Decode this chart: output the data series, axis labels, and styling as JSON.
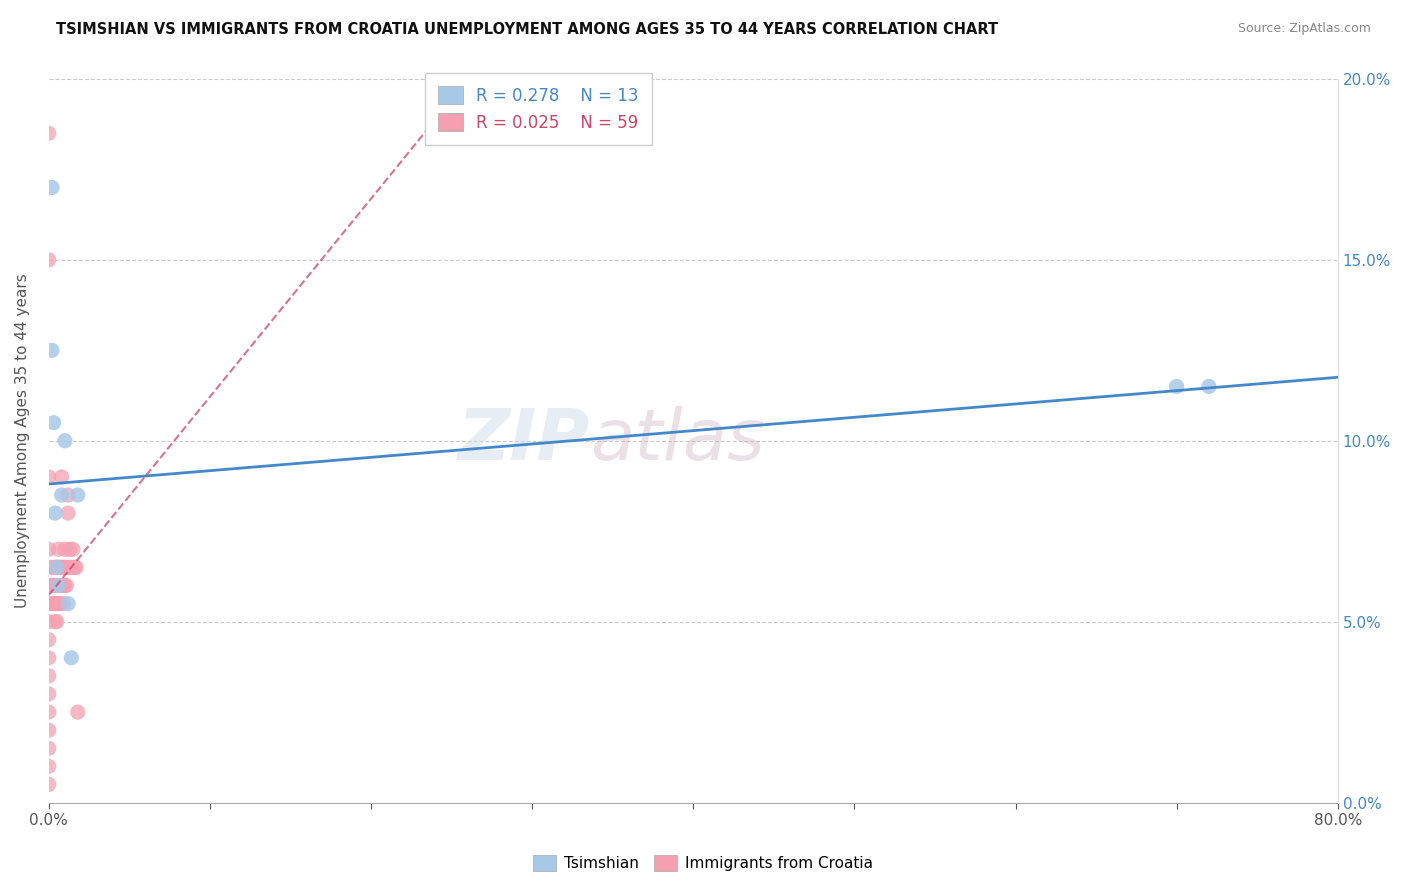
{
  "title": "TSIMSHIAN VS IMMIGRANTS FROM CROATIA UNEMPLOYMENT AMONG AGES 35 TO 44 YEARS CORRELATION CHART",
  "source": "Source: ZipAtlas.com",
  "ylabel": "Unemployment Among Ages 35 to 44 years",
  "legend_label_1": "Tsimshian",
  "legend_label_2": "Immigrants from Croatia",
  "R1": 0.278,
  "N1": 13,
  "R2": 0.025,
  "N2": 59,
  "color1": "#a8c8e8",
  "color2": "#f4a0b0",
  "trendline1_color": "#4488cc",
  "trendline2_color": "#cc4466",
  "xlim": [
    0,
    0.8
  ],
  "ylim": [
    0,
    0.2
  ],
  "xticks": [
    0.0,
    0.1,
    0.2,
    0.3,
    0.4,
    0.5,
    0.6,
    0.7,
    0.8
  ],
  "yticks": [
    0.0,
    0.05,
    0.1,
    0.15,
    0.2
  ],
  "watermark_text": "ZIP",
  "watermark_text2": "atlas",
  "tsimshian_x": [
    0.002,
    0.002,
    0.003,
    0.004,
    0.005,
    0.006,
    0.008,
    0.01,
    0.012,
    0.014,
    0.018,
    0.7,
    0.72
  ],
  "tsimshian_y": [
    0.17,
    0.125,
    0.105,
    0.08,
    0.065,
    0.06,
    0.085,
    0.1,
    0.055,
    0.04,
    0.085,
    0.115,
    0.115
  ],
  "croatia_x": [
    0.0,
    0.0,
    0.0,
    0.0,
    0.0,
    0.0,
    0.0,
    0.0,
    0.0,
    0.0,
    0.0,
    0.0,
    0.0,
    0.0,
    0.0,
    0.0,
    0.0,
    0.002,
    0.002,
    0.003,
    0.003,
    0.003,
    0.004,
    0.004,
    0.004,
    0.004,
    0.005,
    0.005,
    0.005,
    0.005,
    0.005,
    0.006,
    0.006,
    0.006,
    0.006,
    0.007,
    0.007,
    0.007,
    0.008,
    0.008,
    0.008,
    0.009,
    0.009,
    0.009,
    0.009,
    0.01,
    0.01,
    0.01,
    0.011,
    0.011,
    0.012,
    0.012,
    0.013,
    0.013,
    0.014,
    0.015,
    0.016,
    0.017,
    0.018
  ],
  "croatia_y": [
    0.185,
    0.15,
    0.09,
    0.07,
    0.065,
    0.06,
    0.055,
    0.05,
    0.045,
    0.04,
    0.035,
    0.03,
    0.025,
    0.02,
    0.015,
    0.01,
    0.005,
    0.06,
    0.055,
    0.065,
    0.06,
    0.055,
    0.065,
    0.06,
    0.055,
    0.05,
    0.065,
    0.065,
    0.06,
    0.055,
    0.05,
    0.07,
    0.065,
    0.06,
    0.055,
    0.065,
    0.06,
    0.055,
    0.09,
    0.065,
    0.06,
    0.065,
    0.065,
    0.06,
    0.055,
    0.07,
    0.065,
    0.06,
    0.065,
    0.06,
    0.085,
    0.08,
    0.07,
    0.065,
    0.065,
    0.07,
    0.065,
    0.065,
    0.025
  ]
}
